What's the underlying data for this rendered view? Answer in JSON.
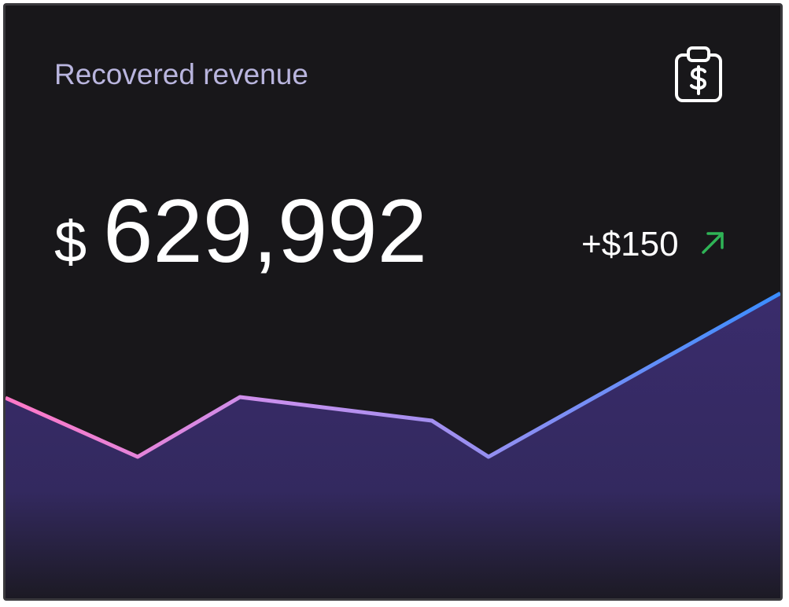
{
  "header": {
    "title": "Recovered revenue"
  },
  "metric": {
    "currency": "$",
    "value": "629,992",
    "change": "+$150"
  },
  "sparkline": {
    "type": "area",
    "values": [
      255,
      180,
      256,
      226,
      180,
      388
    ]
  }
}
